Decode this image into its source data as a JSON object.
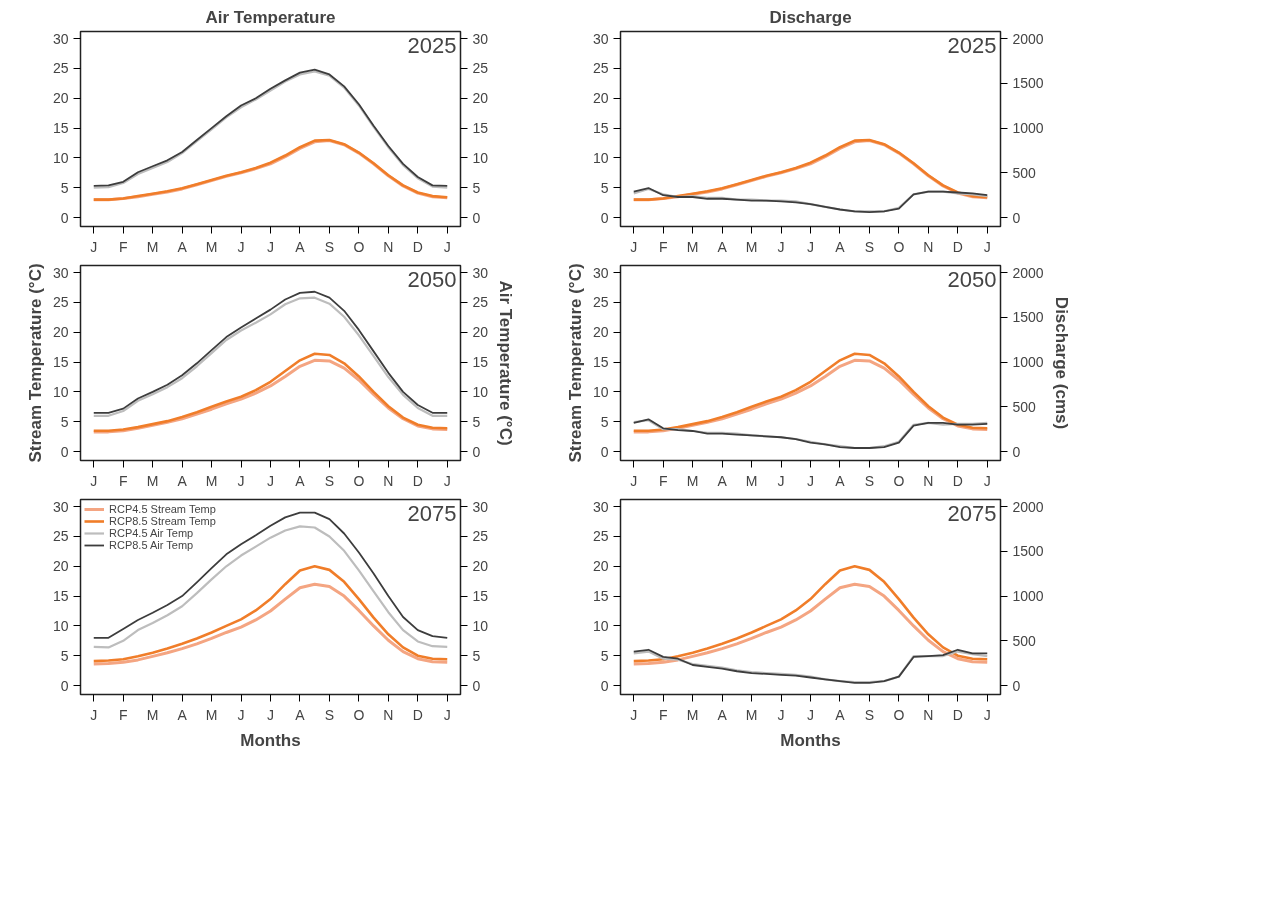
{
  "chart_data": [
    {
      "type": "line",
      "title": "Air Temperature",
      "annotations": [
        "2025"
      ],
      "categories": [
        "J",
        null,
        "F",
        null,
        "M",
        null,
        "A",
        null,
        "M",
        null,
        "J",
        null,
        "J",
        null,
        "A",
        null,
        "S",
        null,
        "O",
        null,
        "N",
        null,
        "D",
        null,
        "J"
      ],
      "ylim": [
        -1.5,
        31.2
      ],
      "yticks": [
        0,
        5,
        10,
        15,
        20,
        25,
        30
      ],
      "y2lim": [
        -1.5,
        31.2
      ],
      "y2ticks": [
        0,
        5,
        10,
        15,
        20,
        25,
        30
      ],
      "grid": false,
      "series": [
        {
          "color": "#f4a582",
          "values": [
            3.0,
            3.0,
            3.2,
            3.5,
            3.9,
            4.3,
            4.8,
            5.5,
            6.2,
            6.9,
            7.5,
            8.2,
            9.0,
            10.2,
            11.6,
            12.7,
            12.9,
            12.2,
            10.8,
            9.0,
            7.0,
            5.3,
            4.1,
            3.5,
            3.3
          ]
        },
        {
          "color": "#f07d29",
          "values": [
            3.0,
            3.0,
            3.2,
            3.6,
            4.0,
            4.4,
            4.9,
            5.6,
            6.3,
            7.0,
            7.6,
            8.3,
            9.2,
            10.4,
            11.8,
            12.9,
            13.0,
            12.3,
            10.9,
            9.1,
            7.1,
            5.4,
            4.2,
            3.6,
            3.4
          ]
        },
        {
          "color": "#bdbdbd",
          "axis": "y2",
          "values": [
            5.0,
            5.1,
            5.8,
            7.3,
            8.3,
            9.3,
            10.8,
            12.8,
            14.8,
            16.8,
            18.5,
            19.8,
            21.3,
            22.8,
            24.0,
            24.5,
            23.8,
            21.8,
            18.8,
            15.2,
            11.8,
            8.8,
            6.6,
            5.2,
            5.0
          ]
        },
        {
          "color": "#3d3d3d",
          "axis": "y2",
          "values": [
            5.3,
            5.4,
            6.0,
            7.6,
            8.6,
            9.6,
            11.0,
            13.0,
            15.0,
            17.0,
            18.8,
            20.0,
            21.6,
            23.0,
            24.3,
            24.8,
            24.0,
            22.0,
            19.0,
            15.4,
            12.0,
            9.0,
            6.8,
            5.4,
            5.3
          ]
        }
      ]
    },
    {
      "type": "line",
      "title": "Discharge",
      "annotations": [
        "2025"
      ],
      "categories": [
        "J",
        null,
        "F",
        null,
        "M",
        null,
        "A",
        null,
        "M",
        null,
        "J",
        null,
        "J",
        null,
        "A",
        null,
        "S",
        null,
        "O",
        null,
        "N",
        null,
        "D",
        null,
        "J"
      ],
      "ylim": [
        -1.5,
        31.2
      ],
      "yticks": [
        0,
        5,
        10,
        15,
        20,
        25,
        30
      ],
      "y2lim": [
        -100,
        2080
      ],
      "y2ticks": [
        0,
        500,
        1000,
        1500,
        2000
      ],
      "grid": false,
      "series": [
        {
          "color": "#f4a582",
          "values": [
            3.0,
            3.0,
            3.2,
            3.5,
            3.9,
            4.3,
            4.8,
            5.5,
            6.2,
            6.9,
            7.5,
            8.2,
            9.0,
            10.2,
            11.6,
            12.7,
            12.9,
            12.2,
            10.8,
            9.0,
            7.0,
            5.3,
            4.1,
            3.5,
            3.3
          ]
        },
        {
          "color": "#f07d29",
          "values": [
            3.0,
            3.0,
            3.2,
            3.6,
            4.0,
            4.4,
            4.9,
            5.6,
            6.3,
            7.0,
            7.6,
            8.3,
            9.2,
            10.4,
            11.8,
            12.9,
            13.0,
            12.3,
            10.9,
            9.1,
            7.1,
            5.4,
            4.2,
            3.6,
            3.4
          ]
        },
        {
          "color": "#bdbdbd",
          "axis": "y2",
          "values": [
            270,
            320,
            260,
            230,
            240,
            220,
            220,
            200,
            200,
            190,
            190,
            180,
            150,
            120,
            90,
            70,
            70,
            70,
            110,
            260,
            290,
            290,
            270,
            260,
            240
          ]
        },
        {
          "color": "#3d3d3d",
          "axis": "y2",
          "values": [
            290,
            330,
            250,
            230,
            230,
            210,
            210,
            200,
            190,
            190,
            180,
            170,
            150,
            120,
            90,
            70,
            60,
            70,
            100,
            260,
            290,
            290,
            280,
            270,
            250
          ]
        }
      ]
    },
    {
      "type": "line",
      "ylabel": "Stream Temperature (°C)",
      "y2label": "Air Temperature (°C)",
      "annotations": [
        "2050"
      ],
      "categories": [
        "J",
        null,
        "F",
        null,
        "M",
        null,
        "A",
        null,
        "M",
        null,
        "J",
        null,
        "J",
        null,
        "A",
        null,
        "S",
        null,
        "O",
        null,
        "N",
        null,
        "D",
        null,
        "J"
      ],
      "ylim": [
        -1.5,
        31.2
      ],
      "yticks": [
        0,
        5,
        10,
        15,
        20,
        25,
        30
      ],
      "y2lim": [
        -1.5,
        31.2
      ],
      "y2ticks": [
        0,
        5,
        10,
        15,
        20,
        25,
        30
      ],
      "grid": false,
      "series": [
        {
          "color": "#f4a582",
          "values": [
            3.3,
            3.3,
            3.5,
            3.9,
            4.4,
            4.9,
            5.5,
            6.3,
            7.1,
            8.0,
            8.8,
            9.8,
            11.0,
            12.6,
            14.3,
            15.3,
            15.2,
            14.0,
            12.0,
            9.6,
            7.3,
            5.5,
            4.3,
            3.8,
            3.7
          ]
        },
        {
          "color": "#f07d29",
          "values": [
            3.5,
            3.5,
            3.7,
            4.1,
            4.6,
            5.1,
            5.8,
            6.6,
            7.5,
            8.4,
            9.2,
            10.3,
            11.7,
            13.5,
            15.3,
            16.4,
            16.2,
            14.8,
            12.6,
            10.0,
            7.6,
            5.7,
            4.5,
            4.0,
            3.9
          ]
        },
        {
          "color": "#bdbdbd",
          "axis": "y2",
          "values": [
            6.0,
            6.0,
            6.8,
            8.5,
            9.6,
            10.8,
            12.3,
            14.3,
            16.5,
            18.7,
            20.3,
            21.6,
            23.0,
            24.7,
            25.7,
            25.8,
            24.8,
            22.6,
            19.5,
            16.0,
            12.5,
            9.5,
            7.3,
            6.0,
            6.0
          ]
        },
        {
          "color": "#3d3d3d",
          "axis": "y2",
          "values": [
            6.5,
            6.5,
            7.2,
            8.9,
            10.0,
            11.2,
            12.8,
            14.8,
            17.0,
            19.2,
            20.8,
            22.3,
            23.8,
            25.5,
            26.6,
            26.8,
            25.8,
            23.6,
            20.4,
            16.8,
            13.2,
            10.0,
            7.8,
            6.5,
            6.5
          ]
        }
      ]
    },
    {
      "type": "line",
      "ylabel": "Stream Temperature (°C)",
      "y2label": "Discharge (cms)",
      "annotations": [
        "2050"
      ],
      "categories": [
        "J",
        null,
        "F",
        null,
        "M",
        null,
        "A",
        null,
        "M",
        null,
        "J",
        null,
        "J",
        null,
        "A",
        null,
        "S",
        null,
        "O",
        null,
        "N",
        null,
        "D",
        null,
        "J"
      ],
      "ylim": [
        -1.5,
        31.2
      ],
      "yticks": [
        0,
        5,
        10,
        15,
        20,
        25,
        30
      ],
      "y2lim": [
        -100,
        2080
      ],
      "y2ticks": [
        0,
        500,
        1000,
        1500,
        2000
      ],
      "grid": false,
      "series": [
        {
          "color": "#f4a582",
          "values": [
            3.3,
            3.3,
            3.5,
            3.9,
            4.4,
            4.9,
            5.5,
            6.3,
            7.1,
            8.0,
            8.8,
            9.8,
            11.0,
            12.6,
            14.3,
            15.3,
            15.2,
            14.0,
            12.0,
            9.6,
            7.3,
            5.5,
            4.3,
            3.8,
            3.7
          ]
        },
        {
          "color": "#f07d29",
          "values": [
            3.5,
            3.5,
            3.7,
            4.1,
            4.6,
            5.1,
            5.8,
            6.6,
            7.5,
            8.4,
            9.2,
            10.3,
            11.7,
            13.5,
            15.3,
            16.4,
            16.2,
            14.8,
            12.6,
            10.0,
            7.6,
            5.7,
            4.5,
            4.0,
            3.9
          ]
        },
        {
          "color": "#bdbdbd",
          "axis": "y2",
          "values": [
            330,
            350,
            250,
            250,
            230,
            210,
            210,
            200,
            180,
            170,
            160,
            140,
            110,
            80,
            60,
            40,
            40,
            60,
            110,
            300,
            320,
            300,
            310,
            310,
            320
          ]
        },
        {
          "color": "#3d3d3d",
          "axis": "y2",
          "values": [
            320,
            360,
            260,
            240,
            230,
            200,
            200,
            190,
            180,
            170,
            160,
            140,
            100,
            80,
            50,
            40,
            40,
            50,
            100,
            290,
            320,
            320,
            300,
            300,
            310
          ]
        }
      ]
    },
    {
      "type": "line",
      "xlabel": "Months",
      "annotations": [
        "2075"
      ],
      "legend": "top left",
      "categories": [
        "J",
        null,
        "F",
        null,
        "M",
        null,
        "A",
        null,
        "M",
        null,
        "J",
        null,
        "J",
        null,
        "A",
        null,
        "S",
        null,
        "O",
        null,
        "N",
        null,
        "D",
        null,
        "J"
      ],
      "ylim": [
        -1.5,
        31.2
      ],
      "yticks": [
        0,
        5,
        10,
        15,
        20,
        25,
        30
      ],
      "y2lim": [
        -1.5,
        31.2
      ],
      "y2ticks": [
        0,
        5,
        10,
        15,
        20,
        25,
        30
      ],
      "grid": false,
      "series": [
        {
          "name": "RCP4.5 Stream Temp",
          "color": "#f4a582",
          "values": [
            3.6,
            3.7,
            3.9,
            4.3,
            4.9,
            5.5,
            6.2,
            7.0,
            7.9,
            8.9,
            9.8,
            11.0,
            12.5,
            14.5,
            16.4,
            17.0,
            16.6,
            15.0,
            12.6,
            10.0,
            7.6,
            5.7,
            4.5,
            4.0,
            3.9
          ]
        },
        {
          "name": "RCP8.5 Stream Temp",
          "color": "#f07d29",
          "values": [
            4.1,
            4.2,
            4.4,
            4.9,
            5.5,
            6.2,
            7.0,
            7.9,
            8.9,
            10.0,
            11.1,
            12.6,
            14.5,
            17.0,
            19.3,
            20.0,
            19.4,
            17.4,
            14.5,
            11.4,
            8.6,
            6.4,
            5.0,
            4.5,
            4.4
          ]
        },
        {
          "name": "RCP4.5 Air Temp",
          "color": "#bdbdbd",
          "axis": "y2",
          "values": [
            6.5,
            6.4,
            7.5,
            9.3,
            10.5,
            11.8,
            13.3,
            15.5,
            17.8,
            20.0,
            21.8,
            23.3,
            24.8,
            26.0,
            26.7,
            26.5,
            25.0,
            22.6,
            19.3,
            15.8,
            12.3,
            9.3,
            7.4,
            6.6,
            6.5
          ]
        },
        {
          "name": "RCP8.5 Air Temp",
          "color": "#3d3d3d",
          "axis": "y2",
          "values": [
            8.0,
            8.0,
            9.5,
            11.0,
            12.2,
            13.5,
            15.0,
            17.3,
            19.7,
            22.0,
            23.7,
            25.2,
            26.8,
            28.2,
            29.0,
            29.0,
            27.9,
            25.5,
            22.3,
            18.8,
            15.0,
            11.5,
            9.3,
            8.3,
            8.0
          ]
        }
      ]
    },
    {
      "type": "line",
      "xlabel": "Months",
      "annotations": [
        "2075"
      ],
      "categories": [
        "J",
        null,
        "F",
        null,
        "M",
        null,
        "A",
        null,
        "M",
        null,
        "J",
        null,
        "J",
        null,
        "A",
        null,
        "S",
        null,
        "O",
        null,
        "N",
        null,
        "D",
        null,
        "J"
      ],
      "ylim": [
        -1.5,
        31.2
      ],
      "yticks": [
        0,
        5,
        10,
        15,
        20,
        25,
        30
      ],
      "y2lim": [
        -100,
        2080
      ],
      "y2ticks": [
        0,
        500,
        1000,
        1500,
        2000
      ],
      "grid": false,
      "series": [
        {
          "color": "#f4a582",
          "values": [
            3.6,
            3.7,
            3.9,
            4.3,
            4.9,
            5.5,
            6.2,
            7.0,
            7.9,
            8.9,
            9.8,
            11.0,
            12.5,
            14.5,
            16.4,
            17.0,
            16.6,
            15.0,
            12.6,
            10.0,
            7.6,
            5.7,
            4.5,
            4.0,
            3.9
          ]
        },
        {
          "color": "#f07d29",
          "values": [
            4.1,
            4.2,
            4.4,
            4.9,
            5.5,
            6.2,
            7.0,
            7.9,
            8.9,
            10.0,
            11.1,
            12.6,
            14.5,
            17.0,
            19.3,
            20.0,
            19.4,
            17.4,
            14.5,
            11.4,
            8.6,
            6.4,
            5.0,
            4.5,
            4.4
          ]
        },
        {
          "color": "#bdbdbd",
          "axis": "y2",
          "values": [
            360,
            380,
            300,
            290,
            240,
            220,
            200,
            170,
            150,
            140,
            130,
            120,
            100,
            70,
            50,
            40,
            40,
            50,
            100,
            330,
            330,
            330,
            380,
            350,
            330
          ]
        },
        {
          "color": "#3d3d3d",
          "axis": "y2",
          "values": [
            380,
            400,
            320,
            300,
            230,
            210,
            190,
            160,
            140,
            130,
            120,
            110,
            90,
            70,
            50,
            30,
            30,
            50,
            100,
            320,
            330,
            340,
            400,
            360,
            360
          ]
        }
      ]
    }
  ]
}
